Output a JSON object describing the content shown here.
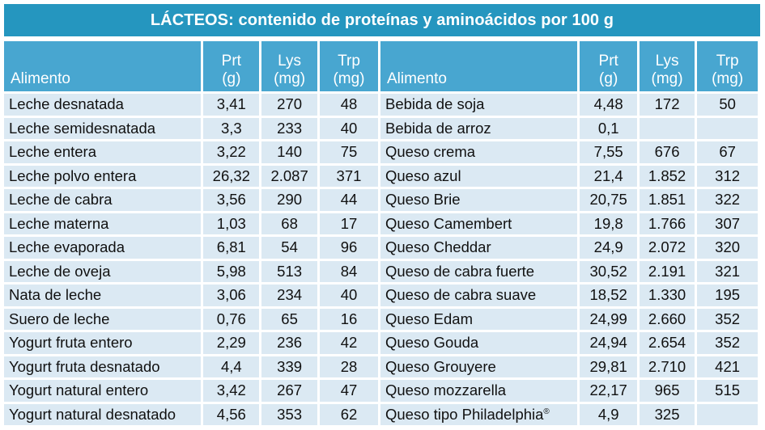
{
  "title": "LÁCTEOS: contenido de proteínas y aminoácidos por 100 g",
  "columns": {
    "alimento": "Alimento",
    "prt": [
      "Prt",
      "(g)"
    ],
    "lys": [
      "Lys",
      "(mg)"
    ],
    "trp": [
      "Trp",
      "(mg)"
    ]
  },
  "left_rows": [
    [
      "Leche desnatada",
      "3,41",
      "270",
      "48"
    ],
    [
      "Leche semidesnatada",
      "3,3",
      "233",
      "40"
    ],
    [
      "Leche entera",
      "3,22",
      "140",
      "75"
    ],
    [
      "Leche polvo entera",
      "26,32",
      "2.087",
      "371"
    ],
    [
      "Leche de cabra",
      "3,56",
      "290",
      "44"
    ],
    [
      "Leche materna",
      "1,03",
      "68",
      "17"
    ],
    [
      "Leche evaporada",
      "6,81",
      "54",
      "96"
    ],
    [
      "Leche de oveja",
      "5,98",
      "513",
      "84"
    ],
    [
      "Nata de leche",
      "3,06",
      "234",
      "40"
    ],
    [
      "Suero de leche",
      "0,76",
      "65",
      "16"
    ],
    [
      "Yogurt fruta entero",
      "2,29",
      "236",
      "42"
    ],
    [
      "Yogurt fruta desnatado",
      "4,4",
      "339",
      "28"
    ],
    [
      "Yogurt natural entero",
      "3,42",
      "267",
      "47"
    ],
    [
      "Yogurt natural desnatado",
      "4,56",
      "353",
      "62"
    ]
  ],
  "right_rows": [
    [
      "Bebida de soja",
      "4,48",
      "172",
      "50"
    ],
    [
      "Bebida de arroz",
      "0,1",
      "",
      ""
    ],
    [
      "Queso crema",
      "7,55",
      "676",
      "67"
    ],
    [
      "Queso azul",
      "21,4",
      "1.852",
      "312"
    ],
    [
      "Queso Brie",
      "20,75",
      "1.851",
      "322"
    ],
    [
      "Queso Camembert",
      "19,8",
      "1.766",
      "307"
    ],
    [
      "Queso Cheddar",
      "24,9",
      "2.072",
      "320"
    ],
    [
      "Queso de cabra fuerte",
      "30,52",
      "2.191",
      "321"
    ],
    [
      "Queso de cabra suave",
      "18,52",
      "1.330",
      "195"
    ],
    [
      "Queso Edam",
      "24,99",
      "2.660",
      "352"
    ],
    [
      "Queso Gouda",
      "24,94",
      "2.654",
      "352"
    ],
    [
      "Queso Grouyere",
      "29,81",
      "2.710",
      "421"
    ],
    [
      "Queso mozzarella",
      "22,17",
      "965",
      "515"
    ],
    [
      "Queso tipo Philadelphia®",
      "4,9",
      "325",
      ""
    ]
  ]
}
